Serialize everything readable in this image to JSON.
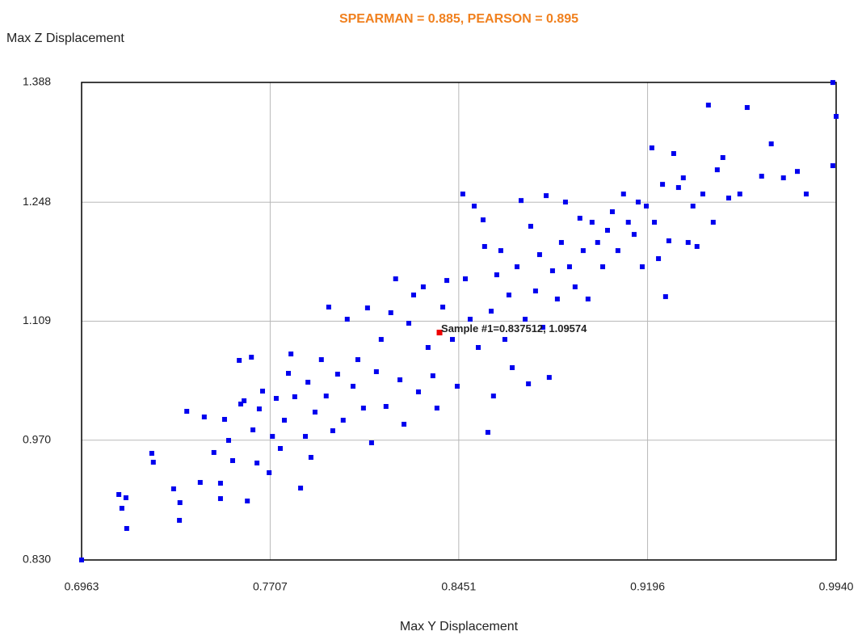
{
  "chart_data": {
    "type": "scatter",
    "title": "SPEARMAN = 0.885, PEARSON = 0.895",
    "title_color": "#f0801e",
    "x_label": "Max Y Displacement",
    "y_label": "Max Z Displacement",
    "xlim": [
      0.6963,
      0.994
    ],
    "ylim": [
      0.83,
      1.388
    ],
    "xticks": [
      0.6963,
      0.7707,
      0.8451,
      0.9196,
      {
        "value": 0.994,
        "label": "0.9940"
      }
    ],
    "yticks": [
      {
        "value": 0.83,
        "label": "0.830"
      },
      {
        "value": 0.97,
        "label": "0.970"
      },
      {
        "value": 1.109,
        "label": "1.109"
      },
      {
        "value": 1.248,
        "label": "1.248"
      },
      {
        "value": 1.388,
        "label": "1.388"
      }
    ],
    "grid": true,
    "color": "#0000ee",
    "x": [
      0.6963,
      0.711,
      0.7138,
      0.7122,
      0.7141,
      0.724,
      0.7246,
      0.7326,
      0.7351,
      0.7349,
      0.7378,
      0.7431,
      0.7447,
      0.7485,
      0.7511,
      0.7511,
      0.7527,
      0.7543,
      0.7559,
      0.7585,
      0.7591,
      0.7604,
      0.7617,
      0.7633,
      0.7639,
      0.7655,
      0.7664,
      0.7677,
      0.7703,
      0.7716,
      0.7731,
      0.7747,
      0.7763,
      0.7779,
      0.7789,
      0.7804,
      0.7827,
      0.7846,
      0.7856,
      0.7868,
      0.7884,
      0.7909,
      0.7928,
      0.7938,
      0.7954,
      0.7973,
      0.7995,
      0.8011,
      0.8034,
      0.8053,
      0.8075,
      0.8091,
      0.8107,
      0.8126,
      0.8145,
      0.8164,
      0.8183,
      0.8202,
      0.8219,
      0.8235,
      0.8254,
      0.8273,
      0.8292,
      0.8311,
      0.833,
      0.8349,
      0.8365,
      0.8388,
      0.8404,
      0.8426,
      0.8445,
      0.8467,
      0.8477,
      0.8496,
      0.8512,
      0.8528,
      0.8547,
      0.8553,
      0.8566,
      0.8579,
      0.8588,
      0.8601,
      0.8617,
      0.8633,
      0.8649,
      0.8662,
      0.8681,
      0.8697,
      0.8713,
      0.8726,
      0.8735,
      0.8754,
      0.877,
      0.8783,
      0.8796,
      0.8808,
      0.8821,
      0.884,
      0.8856,
      0.8872,
      0.8888,
      0.891,
      0.8929,
      0.8942,
      0.8961,
      0.8977,
      0.8999,
      0.9019,
      0.9038,
      0.9057,
      0.9079,
      0.9101,
      0.912,
      0.9143,
      0.9159,
      0.9175,
      0.9191,
      0.9213,
      0.9223,
      0.9239,
      0.9255,
      0.9267,
      0.928,
      0.9299,
      0.9318,
      0.9337,
      0.9356,
      0.9375,
      0.9391,
      0.9414,
      0.9436,
      0.9455,
      0.9471,
      0.9493,
      0.9516,
      0.956,
      0.9589,
      0.9646,
      0.9684,
      0.9732,
      0.9787,
      0.9822,
      0.9927,
      0.994,
      0.9927
    ],
    "y": [
      0.83,
      0.9065,
      0.9027,
      0.8904,
      0.8668,
      0.9546,
      0.9442,
      0.9131,
      0.897,
      0.8763,
      1.0037,
      0.9206,
      0.9971,
      0.9556,
      0.9197,
      0.9017,
      0.9943,
      0.9697,
      0.9461,
      1.0632,
      1.0122,
      1.016,
      0.8989,
      1.0669,
      0.982,
      0.9433,
      1.0065,
      1.0273,
      0.932,
      0.9744,
      1.0188,
      0.9603,
      0.9933,
      1.0481,
      1.0707,
      1.0207,
      0.914,
      0.9744,
      1.0377,
      0.9499,
      1.0028,
      1.0641,
      1.0216,
      1.1255,
      0.981,
      1.0471,
      0.9933,
      1.1113,
      1.033,
      1.0641,
      1.0075,
      1.1245,
      0.9669,
      1.05,
      1.0877,
      1.0094,
      1.1189,
      1.1585,
      1.0405,
      0.9886,
      1.1066,
      1.1396,
      1.0264,
      1.1491,
      1.0783,
      1.0452,
      1.0075,
      1.1255,
      1.1566,
      1.0877,
      1.033,
      1.2576,
      1.1585,
      1.1113,
      1.2435,
      1.0783,
      1.2274,
      1.1963,
      0.9791,
      1.1207,
      1.0216,
      1.1632,
      1.1915,
      1.0877,
      1.1396,
      1.0547,
      1.1726,
      1.25,
      1.1113,
      1.0358,
      1.2199,
      1.1443,
      1.1868,
      1.1019,
      1.2557,
      1.0433,
      1.1679,
      1.1349,
      1.201,
      1.2482,
      1.1726,
      1.1491,
      1.2293,
      1.1915,
      1.1349,
      1.2246,
      1.201,
      1.1726,
      1.2152,
      1.2369,
      1.1915,
      1.2576,
      1.2246,
      1.2104,
      1.2482,
      1.1726,
      1.2435,
      1.3115,
      1.2246,
      1.1821,
      1.2689,
      1.1377,
      1.2029,
      1.3049,
      1.2652,
      1.2765,
      1.201,
      1.2435,
      1.1963,
      1.2576,
      1.3615,
      1.2246,
      1.2859,
      1.3002,
      1.2529,
      1.2576,
      1.3587,
      1.2784,
      1.3162,
      1.2765,
      1.284,
      1.2576,
      1.3879,
      1.3483,
      1.2907
    ],
    "highlight": {
      "x": 0.837512,
      "y": 1.09574,
      "color": "#ee0000",
      "label": "Sample #1=0.837512, 1.09574"
    }
  }
}
